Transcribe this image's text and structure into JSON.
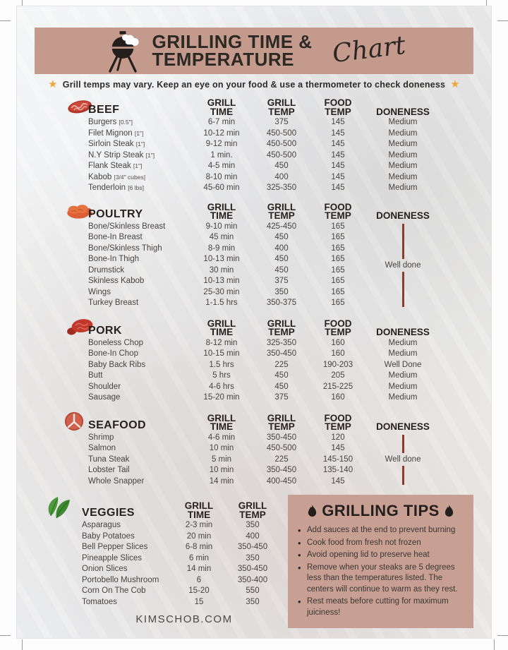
{
  "header": {
    "title_line1": "GRILLING TIME &",
    "title_line2": "TEMPERATURE",
    "script_word": "Chart",
    "subtitle": "Grill temps may vary. Keep an eye on your food & use a thermometer to check doneness"
  },
  "column_headers": {
    "grill_time": [
      "GRILL",
      "TIME"
    ],
    "grill_temp": [
      "GRILL",
      "TEMP"
    ],
    "food_temp": [
      "FOOD",
      "TEMP"
    ],
    "doneness": "DONENESS"
  },
  "sections": [
    {
      "name": "BEEF",
      "icon": "steak-icon",
      "doneness_mode": "per-row",
      "rows": [
        {
          "item": "Burgers",
          "note": "[0.5\"]",
          "time": "6-7 min",
          "temp": "375",
          "food": "145",
          "done": "Medium"
        },
        {
          "item": "Filet Mignon",
          "note": "[1\"]",
          "time": "10-12 min",
          "temp": "450-500",
          "food": "145",
          "done": "Medium"
        },
        {
          "item": "Sirloin Steak",
          "note": "[1\"]",
          "time": "9-12 min",
          "temp": "450-500",
          "food": "145",
          "done": "Medium"
        },
        {
          "item": "N.Y Strip Steak",
          "note": "[1\"]",
          "time": "1 min.",
          "temp": "450-500",
          "food": "145",
          "done": "Medium"
        },
        {
          "item": "Flank Steak",
          "note": "[1\"]",
          "time": "4-5 min",
          "temp": "450",
          "food": "145",
          "done": "Medium"
        },
        {
          "item": "Kabob",
          "note": "[3/4\" cubes]",
          "time": "8-10 min",
          "temp": "400",
          "food": "145",
          "done": "Medium"
        },
        {
          "item": "Tenderloin",
          "note": "[6 lbs]",
          "time": "45-60 min",
          "temp": "325-350",
          "food": "145",
          "done": "Medium"
        }
      ]
    },
    {
      "name": "POULTRY",
      "icon": "chicken-icon",
      "doneness_mode": "bracket",
      "doneness_label": "Well done",
      "rows": [
        {
          "item": "Bone/Skinless Breast",
          "note": "",
          "time": "9-10 min",
          "temp": "425-450",
          "food": "165",
          "done": ""
        },
        {
          "item": "Bone-In Breast",
          "note": "",
          "time": "45 min",
          "temp": "450",
          "food": "165",
          "done": ""
        },
        {
          "item": "Bone/Skinless Thigh",
          "note": "",
          "time": "8-9 min",
          "temp": "400",
          "food": "165",
          "done": ""
        },
        {
          "item": "Bone-In Thigh",
          "note": "",
          "time": "10-13 min",
          "temp": "450",
          "food": "165",
          "done": ""
        },
        {
          "item": "Drumstick",
          "note": "",
          "time": "30 min",
          "temp": "450",
          "food": "165",
          "done": ""
        },
        {
          "item": "Skinless Kabob",
          "note": "",
          "time": "10-13 min",
          "temp": "375",
          "food": "165",
          "done": ""
        },
        {
          "item": "Wings",
          "note": "",
          "time": "25-30 min",
          "temp": "350",
          "food": "165",
          "done": ""
        },
        {
          "item": "Turkey Breast",
          "note": "",
          "time": "1-1.5 hrs",
          "temp": "350-375",
          "food": "165",
          "done": ""
        }
      ]
    },
    {
      "name": "PORK",
      "icon": "ham-icon",
      "doneness_mode": "per-row",
      "rows": [
        {
          "item": "Boneless Chop",
          "note": "",
          "time": "8-12 min",
          "temp": "325-350",
          "food": "160",
          "done": "Medium"
        },
        {
          "item": "Bone-In Chop",
          "note": "",
          "time": "10-15 min",
          "temp": "350-450",
          "food": "160",
          "done": "Medium"
        },
        {
          "item": "Baby Back Ribs",
          "note": "",
          "time": "1.5 hrs",
          "temp": "225",
          "food": "190-203",
          "done": "Well Done"
        },
        {
          "item": "Butt",
          "note": "",
          "time": "5 hrs",
          "temp": "450",
          "food": "205",
          "done": "Medium"
        },
        {
          "item": "Shoulder",
          "note": "",
          "time": "4-6 hrs",
          "temp": "450",
          "food": "215-225",
          "done": "Medium"
        },
        {
          "item": "Sausage",
          "note": "",
          "time": "15-20 min",
          "temp": "375",
          "food": "160",
          "done": "Medium"
        }
      ]
    },
    {
      "name": "SEAFOOD",
      "icon": "fish-steak-icon",
      "doneness_mode": "bracket",
      "doneness_label": "Well done",
      "rows": [
        {
          "item": "Shrimp",
          "note": "",
          "time": "4-6 min",
          "temp": "350-450",
          "food": "120",
          "done": ""
        },
        {
          "item": "Salmon",
          "note": "",
          "time": "10 min",
          "temp": "450-500",
          "food": "145",
          "done": ""
        },
        {
          "item": "Tuna Steak",
          "note": "",
          "time": "5 min",
          "temp": "225",
          "food": "145-150",
          "done": ""
        },
        {
          "item": "Lobster Tail",
          "note": "",
          "time": "10 min",
          "temp": "350-450",
          "food": "135-140",
          "done": ""
        },
        {
          "item": "Whole Snapper",
          "note": "",
          "time": "14 min",
          "temp": "400-450",
          "food": "145",
          "done": ""
        }
      ]
    }
  ],
  "veggies": {
    "name": "VEGGIES",
    "icon": "leaves-icon",
    "rows": [
      {
        "item": "Asparagus",
        "time": "2-3 min",
        "temp": "350"
      },
      {
        "item": "Baby Potatoes",
        "time": "20 min",
        "temp": "400"
      },
      {
        "item": "Bell Pepper Slices",
        "time": "6-8 min",
        "temp": "350-450"
      },
      {
        "item": "Pineapple Slices",
        "time": "6 min",
        "temp": "350"
      },
      {
        "item": "Onion Slices",
        "time": "14 min",
        "temp": "350-450"
      },
      {
        "item": "Portobello Mushroom",
        "time": "6",
        "temp": "350-400"
      },
      {
        "item": "Corn On The Cob",
        "time": "15-20",
        "temp": "550"
      },
      {
        "item": "Tomatoes",
        "time": "15",
        "temp": "350"
      }
    ]
  },
  "tips": {
    "title": "GRILLING TIPS",
    "items": [
      "Add sauces at the end to prevent burning",
      "Cook food from fresh not frozen",
      "Avoid opening lid  to preserve heat",
      "Remove when your steaks are 5 degrees less than the temperatures listed. The centers will continue to warm as they rest.",
      "Rest meats before cutting for maximum juiciness!"
    ]
  },
  "footer": {
    "site": "KIMSCHOB.COM"
  },
  "colors": {
    "banner": "#c49a8c",
    "tips_box": "#c7a093",
    "doneness_line": "#8e3b2b",
    "star": "#f0a43c",
    "title_text": "#2c2824"
  }
}
